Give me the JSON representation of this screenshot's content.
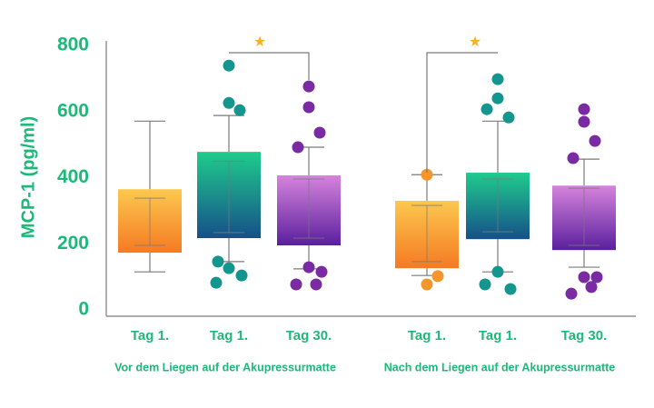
{
  "chart_data": {
    "type": "box",
    "ylabel": "MCP-1 (pg/ml)",
    "ylim": [
      0,
      800
    ],
    "yticks": [
      0,
      200,
      400,
      600,
      800
    ],
    "categories": [
      "Tag 1.",
      "Tag 1.",
      "Tag 30.",
      "Tag 1.",
      "Tag 1.",
      "Tag 30."
    ],
    "groups": [
      "Vor dem Liegen auf der Akupressurmatte",
      "Nach dem Liegen auf der Akupressurmatte"
    ],
    "annotations": [
      "★",
      "★"
    ],
    "annotation_color": "#f5b323",
    "boxes": [
      {
        "color_top": "#fcc84f",
        "color_bottom": "#f57a22",
        "point_color": "#f5952a",
        "whisker": [
          115,
          571
        ],
        "box": [
          173,
          365
        ],
        "inner": [
          195,
          338
        ],
        "points": []
      },
      {
        "color_top": "#1fcc8c",
        "color_bottom": "#16508a",
        "point_color": "#14968f",
        "whisker": [
          146,
          588
        ],
        "box": [
          217,
          478
        ],
        "inner": [
          234,
          450
        ],
        "points": [
          739,
          626,
          604,
          146,
          126,
          104,
          82
        ]
      },
      {
        "color_top": "#d684dc",
        "color_bottom": "#5a1f9e",
        "point_color": "#7a2aa3",
        "whisker": [
          124,
          492
        ],
        "box": [
          195,
          407
        ],
        "inner": [
          217,
          396
        ],
        "points": [
          676,
          613,
          536,
          492,
          129,
          115,
          77,
          77
        ]
      },
      {
        "color_top": "#fcc84f",
        "color_bottom": "#f57a22",
        "point_color": "#f5952a",
        "whisker": [
          104,
          409
        ],
        "box": [
          126,
          330
        ],
        "inner": [
          146,
          316
        ],
        "points": [
          409,
          77,
          102
        ]
      },
      {
        "color_top": "#1fcc8c",
        "color_bottom": "#16508a",
        "point_color": "#14968f",
        "whisker": [
          115,
          571
        ],
        "box": [
          214,
          415
        ],
        "inner": [
          236,
          396
        ],
        "points": [
          698,
          640,
          582,
          607,
          115,
          63,
          77
        ]
      },
      {
        "color_top": "#d684dc",
        "color_bottom": "#5a1f9e",
        "point_color": "#7a2aa3",
        "whisker": [
          129,
          456
        ],
        "box": [
          181,
          376
        ],
        "inner": [
          195,
          368
        ],
        "points": [
          607,
          569,
          511,
          459,
          99,
          99,
          49,
          69
        ]
      }
    ]
  }
}
